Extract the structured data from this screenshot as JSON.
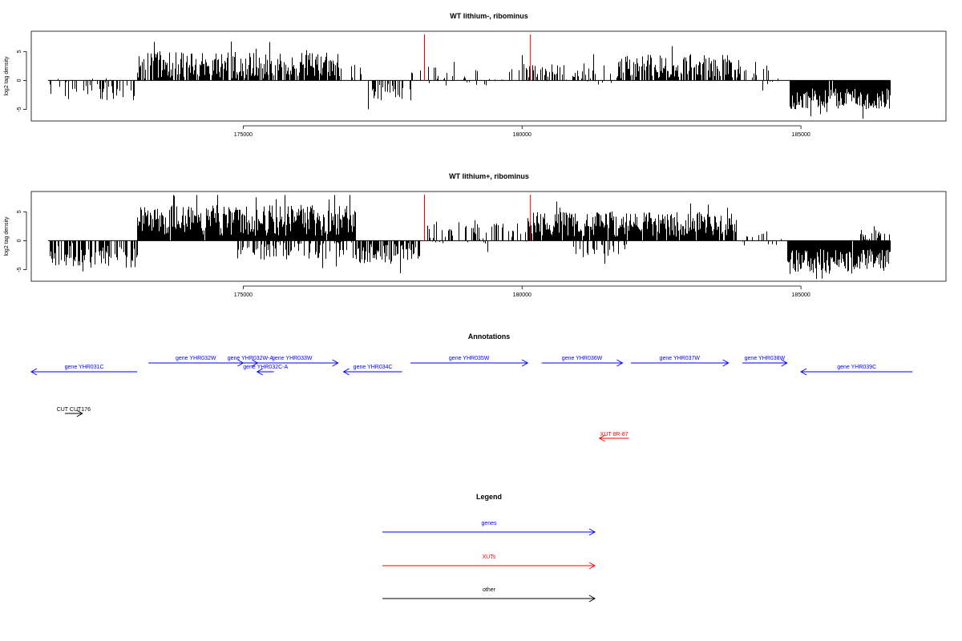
{
  "chart_data": [
    {
      "type": "bar",
      "title": "WT lithium-, ribominus",
      "ylabel": "log2 tag density",
      "xlim": [
        171200,
        187600
      ],
      "ylim": [
        -7,
        8.5
      ],
      "yticks": [
        -5,
        0,
        5
      ],
      "ytick_labels": [
        "-5",
        "0",
        "5"
      ],
      "xticks": [
        175000,
        180000,
        185000
      ],
      "xtick_labels": [
        "175000",
        "180000",
        "185000"
      ],
      "red_markers_x": [
        178250,
        180150
      ],
      "grid": false,
      "segments": [
        {
          "from": 171500,
          "to": 173100,
          "mean": -1.5,
          "amp": 1.6,
          "density": 0.35
        },
        {
          "from": 173100,
          "to": 176700,
          "mean": 2.6,
          "amp": 1.9,
          "density": 0.85
        },
        {
          "from": 176700,
          "to": 177200,
          "mean": 1.4,
          "amp": 1.2,
          "density": 0.2
        },
        {
          "from": 177200,
          "to": 178000,
          "mean": -1.8,
          "amp": 1.4,
          "density": 0.45
        },
        {
          "from": 178000,
          "to": 180000,
          "mean": 0.7,
          "amp": 1.4,
          "density": 0.25
        },
        {
          "from": 180000,
          "to": 181300,
          "mean": 1.6,
          "amp": 1.5,
          "density": 0.5
        },
        {
          "from": 181300,
          "to": 181700,
          "mean": 0.3,
          "amp": 1.2,
          "density": 0.2
        },
        {
          "from": 181700,
          "to": 183900,
          "mean": 2.4,
          "amp": 1.7,
          "density": 0.7
        },
        {
          "from": 183900,
          "to": 184600,
          "mean": 0.6,
          "amp": 1.2,
          "density": 0.2
        },
        {
          "from": 184800,
          "to": 186600,
          "mean": -3.2,
          "amp": 1.5,
          "density": 0.98
        }
      ]
    },
    {
      "type": "bar",
      "title": "WT lithium+, ribominus",
      "ylabel": "log2 tag density",
      "xlim": [
        171200,
        187600
      ],
      "ylim": [
        -7,
        8.5
      ],
      "yticks": [
        -5,
        0,
        5
      ],
      "ytick_labels": [
        "-5",
        "0",
        "5"
      ],
      "xticks": [
        175000,
        180000,
        185000
      ],
      "xtick_labels": [
        "175000",
        "180000",
        "185000"
      ],
      "red_markers_x": [
        178250,
        180150
      ],
      "grid": false,
      "segments": [
        {
          "from": 171500,
          "to": 173100,
          "mean": -2.6,
          "amp": 1.9,
          "density": 0.6
        },
        {
          "from": 173100,
          "to": 177000,
          "mean": 3.5,
          "amp": 2.2,
          "density": 0.98
        },
        {
          "from": 174900,
          "to": 177000,
          "mean": -1.6,
          "amp": 1.4,
          "density": 0.5
        },
        {
          "from": 177000,
          "to": 178200,
          "mean": -2.2,
          "amp": 1.5,
          "density": 0.75
        },
        {
          "from": 178300,
          "to": 180100,
          "mean": 1.4,
          "amp": 1.6,
          "density": 0.45
        },
        {
          "from": 180100,
          "to": 183800,
          "mean": 2.8,
          "amp": 1.8,
          "density": 0.95
        },
        {
          "from": 180900,
          "to": 181900,
          "mean": -1.4,
          "amp": 1.2,
          "density": 0.35
        },
        {
          "from": 183800,
          "to": 184700,
          "mean": 0.7,
          "amp": 1.3,
          "density": 0.3
        },
        {
          "from": 184750,
          "to": 186600,
          "mean": -3.6,
          "amp": 1.8,
          "density": 0.99
        },
        {
          "from": 186000,
          "to": 186600,
          "mean": 1.0,
          "amp": 1.2,
          "density": 0.45
        }
      ]
    }
  ],
  "annotations": {
    "title": "Annotations",
    "genes": [
      {
        "label": "gene YHR031C",
        "from": 171200,
        "to": 173100,
        "strand": "-",
        "row": 1
      },
      {
        "label": "gene YHR032W",
        "from": 173300,
        "to": 175000,
        "strand": "+",
        "row": 0
      },
      {
        "label": "gene YHR032W-A",
        "from": 175000,
        "to": 175050,
        "strand": "+",
        "row": 0
      },
      {
        "label": "gene YHR033W",
        "from": 175050,
        "to": 176700,
        "strand": "+",
        "row": 0
      },
      {
        "label": "gene YHR032C-A",
        "from": 175250,
        "to": 175550,
        "strand": "-",
        "row": 1
      },
      {
        "label": "gene YHR034C",
        "from": 176800,
        "to": 177850,
        "strand": "-",
        "row": 1
      },
      {
        "label": "gene YHR035W",
        "from": 178000,
        "to": 180100,
        "strand": "+",
        "row": 0
      },
      {
        "label": "gene YHR036W",
        "from": 180350,
        "to": 181800,
        "strand": "+",
        "row": 0
      },
      {
        "label": "gene YHR037W",
        "from": 181950,
        "to": 183700,
        "strand": "+",
        "row": 0
      },
      {
        "label": "gene YHR038W",
        "from": 183950,
        "to": 184750,
        "strand": "+",
        "row": 0
      },
      {
        "label": "gene YHR039C",
        "from": 185000,
        "to": 187000,
        "strand": "-",
        "row": 1
      }
    ],
    "others": [
      {
        "label": "CUT CUT176",
        "from": 171400,
        "to": 171800,
        "strand": "+"
      }
    ],
    "xuts": [
      {
        "label": "XUT 8R-87",
        "from": 181100,
        "to": 181800,
        "strand": "-"
      }
    ]
  },
  "legend": {
    "title": "Legend",
    "items": [
      {
        "label": "genes",
        "color": "#0000ff"
      },
      {
        "label": "XUTs",
        "color": "#ff0000"
      },
      {
        "label": "other",
        "color": "#000000"
      }
    ]
  },
  "colors": {
    "genes": "#0000ff",
    "xuts": "#ff0000",
    "other": "#000000",
    "marker": "#ff0000"
  }
}
